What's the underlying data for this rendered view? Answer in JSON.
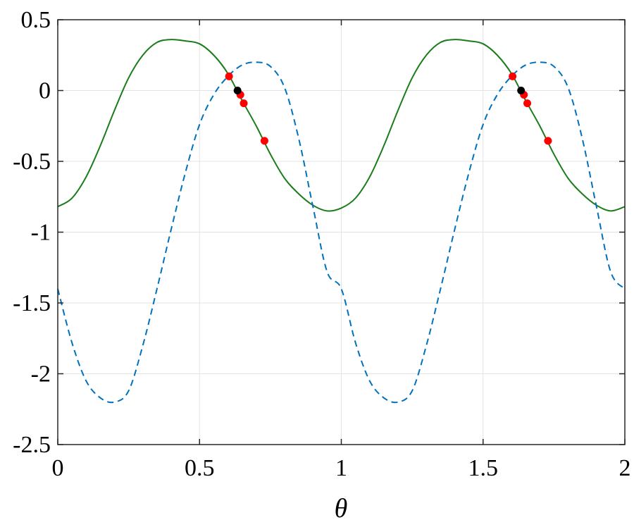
{
  "chart_data": {
    "type": "line",
    "xlabel": "θ",
    "ylabel": "",
    "xlim": [
      0,
      2
    ],
    "ylim": [
      -2.5,
      0.5
    ],
    "xticks": [
      0,
      0.5,
      1,
      1.5,
      2
    ],
    "yticks": [
      -2.5,
      -2,
      -1.5,
      -1,
      -0.5,
      0,
      0.5
    ],
    "xtick_labels": [
      "0",
      "0.5",
      "1",
      "1.5",
      "2"
    ],
    "ytick_labels": [
      "-2.5",
      "-2",
      "-1.5",
      "-1",
      "-0.5",
      "0",
      "0.5"
    ],
    "grid": true,
    "series": [
      {
        "style": "solid",
        "color": "#1a7d1a",
        "x": [
          0,
          0.05,
          0.1,
          0.15,
          0.2,
          0.25,
          0.3,
          0.35,
          0.4,
          0.45,
          0.5,
          0.55,
          0.6,
          0.65,
          0.7,
          0.75,
          0.8,
          0.85,
          0.9,
          0.95,
          1.0,
          1.05,
          1.1,
          1.15,
          1.2,
          1.25,
          1.3,
          1.35,
          1.4,
          1.45,
          1.5,
          1.55,
          1.6,
          1.65,
          1.7,
          1.75,
          1.8,
          1.85,
          1.9,
          1.95,
          2.0
        ],
        "y": [
          -0.82,
          -0.76,
          -0.61,
          -0.39,
          -0.14,
          0.09,
          0.25,
          0.34,
          0.36,
          0.35,
          0.33,
          0.25,
          0.12,
          -0.07,
          -0.25,
          -0.45,
          -0.62,
          -0.73,
          -0.81,
          -0.85,
          -0.83,
          -0.76,
          -0.61,
          -0.39,
          -0.14,
          0.09,
          0.25,
          0.34,
          0.36,
          0.35,
          0.33,
          0.25,
          0.12,
          -0.07,
          -0.25,
          -0.45,
          -0.62,
          -0.73,
          -0.81,
          -0.85,
          -0.82
        ]
      },
      {
        "style": "dashed",
        "color": "#0072bd",
        "x": [
          0,
          0.05,
          0.1,
          0.15,
          0.2,
          0.25,
          0.3,
          0.35,
          0.4,
          0.45,
          0.5,
          0.55,
          0.6,
          0.65,
          0.7,
          0.75,
          0.8,
          0.85,
          0.9,
          0.95,
          1.0,
          1.05,
          1.1,
          1.15,
          1.2,
          1.25,
          1.3,
          1.35,
          1.4,
          1.45,
          1.5,
          1.55,
          1.6,
          1.65,
          1.7,
          1.75,
          1.8,
          1.85,
          1.9,
          1.95,
          2.0
        ],
        "y": [
          -1.4,
          -1.78,
          -2.05,
          -2.17,
          -2.2,
          -2.12,
          -1.8,
          -1.4,
          -0.98,
          -0.58,
          -0.24,
          -0.03,
          0.1,
          0.18,
          0.2,
          0.17,
          0.02,
          -0.34,
          -0.82,
          -1.28,
          -1.4,
          -1.78,
          -2.05,
          -2.17,
          -2.2,
          -2.12,
          -1.8,
          -1.4,
          -0.98,
          -0.58,
          -0.24,
          -0.03,
          0.1,
          0.18,
          0.2,
          0.17,
          0.02,
          -0.34,
          -0.82,
          -1.28,
          -1.4
        ]
      }
    ],
    "markers": [
      {
        "x": 0.604,
        "y": 0.1,
        "color": "#ff0000"
      },
      {
        "x": 0.644,
        "y": -0.03,
        "color": "#ff0000"
      },
      {
        "x": 0.656,
        "y": -0.09,
        "color": "#ff0000"
      },
      {
        "x": 0.729,
        "y": -0.355,
        "color": "#ff0000"
      },
      {
        "x": 0.634,
        "y": 0.0,
        "color": "#000000"
      },
      {
        "x": 1.604,
        "y": 0.1,
        "color": "#ff0000"
      },
      {
        "x": 1.644,
        "y": -0.03,
        "color": "#ff0000"
      },
      {
        "x": 1.656,
        "y": -0.09,
        "color": "#ff0000"
      },
      {
        "x": 1.729,
        "y": -0.355,
        "color": "#ff0000"
      },
      {
        "x": 1.634,
        "y": 0.0,
        "color": "#000000"
      }
    ]
  }
}
